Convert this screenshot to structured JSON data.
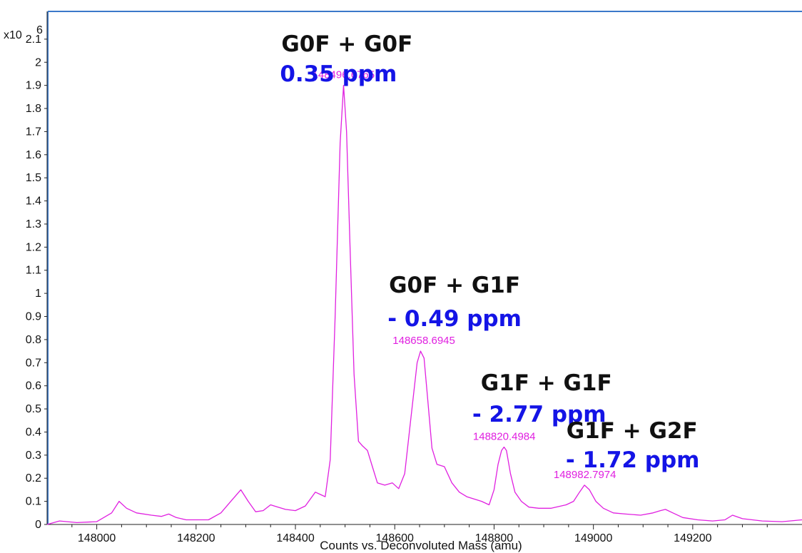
{
  "chart_data": {
    "type": "line",
    "title": "",
    "xlabel": "Counts vs. Deconvoluted Mass (amu)",
    "ylabel": "",
    "y_multiplier": "x10",
    "y_exponent": "6",
    "xlim": [
      147900,
      149420
    ],
    "ylim": [
      0,
      2.22
    ],
    "x_ticks": [
      "148000",
      "148200",
      "148400",
      "148600",
      "148800",
      "149000",
      "149200"
    ],
    "y_ticks": [
      "0",
      "0.1",
      "0.2",
      "0.3",
      "0.4",
      "0.5",
      "0.6",
      "0.7",
      "0.8",
      "0.9",
      "1",
      "1.1",
      "1.2",
      "1.3",
      "1.4",
      "1.5",
      "1.6",
      "1.7",
      "1.8",
      "1.9",
      "2",
      "2.1"
    ],
    "grid": false,
    "series": [
      {
        "color": "#e020e0",
        "x": [
          147900,
          147925,
          147960,
          148000,
          148030,
          148045,
          148060,
          148080,
          148110,
          148130,
          148145,
          148160,
          148180,
          148200,
          148225,
          148250,
          148270,
          148290,
          148305,
          148320,
          148335,
          148350,
          148365,
          148380,
          148400,
          148420,
          148440,
          148450,
          148460,
          148470,
          148480,
          148490,
          148497,
          148503,
          148510,
          148518,
          148527,
          148535,
          148545,
          148555,
          148565,
          148580,
          148595,
          148608,
          148620,
          148632,
          148645,
          148652,
          148659,
          148666,
          148675,
          148685,
          148700,
          148715,
          148730,
          148745,
          148760,
          148775,
          148790,
          148800,
          148808,
          148815,
          148820,
          148825,
          148833,
          148842,
          148855,
          148870,
          148890,
          148915,
          148945,
          148960,
          148972,
          148982,
          148992,
          149005,
          149020,
          149040,
          149065,
          149095,
          149120,
          149135,
          149145,
          149160,
          149180,
          149210,
          149240,
          149265,
          149280,
          149300,
          149340,
          149380,
          149420
        ],
        "y": [
          0.0,
          0.015,
          0.008,
          0.012,
          0.05,
          0.1,
          0.07,
          0.05,
          0.04,
          0.035,
          0.045,
          0.03,
          0.02,
          0.02,
          0.02,
          0.05,
          0.1,
          0.15,
          0.1,
          0.055,
          0.06,
          0.085,
          0.075,
          0.065,
          0.06,
          0.08,
          0.14,
          0.13,
          0.12,
          0.28,
          0.9,
          1.65,
          1.9,
          1.7,
          1.2,
          0.65,
          0.36,
          0.34,
          0.32,
          0.25,
          0.18,
          0.17,
          0.18,
          0.155,
          0.22,
          0.45,
          0.7,
          0.75,
          0.72,
          0.55,
          0.33,
          0.26,
          0.25,
          0.18,
          0.14,
          0.12,
          0.11,
          0.1,
          0.085,
          0.15,
          0.26,
          0.32,
          0.335,
          0.32,
          0.22,
          0.14,
          0.1,
          0.075,
          0.07,
          0.07,
          0.085,
          0.1,
          0.14,
          0.17,
          0.15,
          0.1,
          0.07,
          0.05,
          0.045,
          0.04,
          0.05,
          0.06,
          0.065,
          0.05,
          0.03,
          0.02,
          0.015,
          0.02,
          0.04,
          0.025,
          0.015,
          0.012,
          0.02
        ]
      }
    ],
    "peak_labels": [
      {
        "text": "148496.6765",
        "x": 148496.6765,
        "y": 1.9
      },
      {
        "text": "148658.6945",
        "x": 148658.6945,
        "y": 0.75
      },
      {
        "text": "148820.4984",
        "x": 148820.4984,
        "y": 0.335
      },
      {
        "text": "148982.7974",
        "x": 148982.7974,
        "y": 0.17
      }
    ],
    "annotations": [
      {
        "name": "G0F + G0F",
        "ppm": "0.35 ppm",
        "peak": 148496.6765
      },
      {
        "name": "G0F + G1F",
        "ppm": "- 0.49 ppm",
        "peak": 148658.6945
      },
      {
        "name": "G1F + G1F",
        "ppm": "- 2.77 ppm",
        "peak": 148820.4984
      },
      {
        "name": "G1F + G2F",
        "ppm": "- 1.72 ppm",
        "peak": 148982.7974
      }
    ],
    "colors": {
      "trace": "#e020e0",
      "peak_label": "#e020e0",
      "ppm": "#1414e6",
      "frame": "#3a78c9",
      "axis": "#222222"
    }
  }
}
